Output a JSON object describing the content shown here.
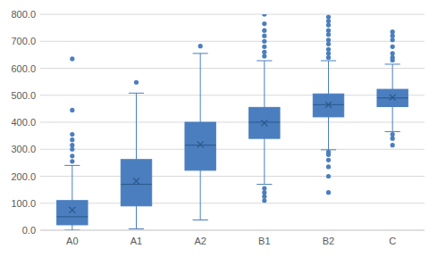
{
  "chart_data": {
    "type": "box",
    "categories": [
      "A0",
      "A1",
      "A2",
      "B1",
      "B2",
      "C"
    ],
    "whisker_low": [
      0,
      5,
      38,
      170,
      298,
      365
    ],
    "q1": [
      20,
      90,
      222,
      340,
      420,
      458
    ],
    "median": [
      50,
      170,
      315,
      400,
      465,
      490
    ],
    "q3": [
      110,
      262,
      400,
      455,
      505,
      522
    ],
    "whisker_high": [
      240,
      508,
      655,
      628,
      628,
      615
    ],
    "mean": [
      75,
      182,
      318,
      397,
      465,
      492
    ],
    "outliers": [
      [
        635,
        445,
        355,
        335,
        315,
        300,
        275,
        255
      ],
      [
        548
      ],
      [
        682
      ],
      [
        800,
        765,
        740,
        720,
        700,
        680,
        660,
        645,
        155,
        140,
        125,
        110
      ],
      [
        790,
        775,
        760,
        740,
        725,
        705,
        690,
        670,
        655,
        640,
        290,
        280,
        260,
        235,
        200,
        140
      ],
      [
        735,
        720,
        705,
        680,
        655,
        640,
        630,
        355,
        340,
        315
      ]
    ],
    "color": "#4a7ebf",
    "ylim": [
      0,
      800
    ],
    "yticks": [
      {
        "value": 0,
        "label": "0.0"
      },
      {
        "value": 100,
        "label": "100.0"
      },
      {
        "value": 200,
        "label": "200.0"
      },
      {
        "value": 300,
        "label": "300.0"
      },
      {
        "value": 400,
        "label": "400.0"
      },
      {
        "value": 500,
        "label": "500.0"
      },
      {
        "value": 600,
        "label": "600.0"
      },
      {
        "value": 700,
        "label": "700.0"
      },
      {
        "value": 800,
        "label": "800.0"
      }
    ],
    "grid": true
  }
}
